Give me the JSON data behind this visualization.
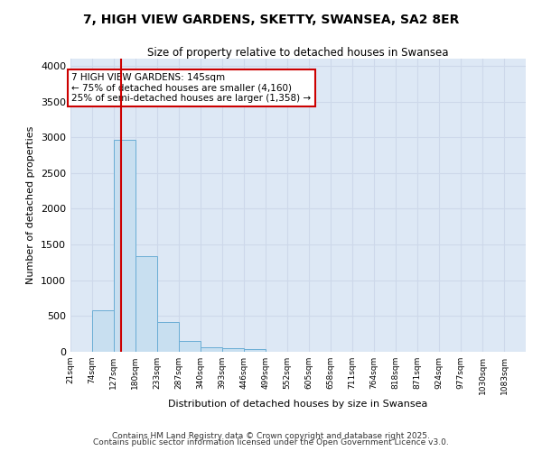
{
  "title_line1": "7, HIGH VIEW GARDENS, SKETTY, SWANSEA, SA2 8ER",
  "title_line2": "Size of property relative to detached houses in Swansea",
  "xlabel": "Distribution of detached houses by size in Swansea",
  "ylabel": "Number of detached properties",
  "bin_labels": [
    "21sqm",
    "74sqm",
    "127sqm",
    "180sqm",
    "233sqm",
    "287sqm",
    "340sqm",
    "393sqm",
    "446sqm",
    "499sqm",
    "552sqm",
    "605sqm",
    "658sqm",
    "711sqm",
    "764sqm",
    "818sqm",
    "871sqm",
    "924sqm",
    "977sqm",
    "1030sqm",
    "1083sqm"
  ],
  "bin_edges": [
    21,
    74,
    127,
    180,
    233,
    287,
    340,
    393,
    446,
    499,
    552,
    605,
    658,
    711,
    764,
    818,
    871,
    924,
    977,
    1030,
    1083,
    1136
  ],
  "bar_heights": [
    0,
    580,
    2970,
    1340,
    420,
    155,
    65,
    45,
    35,
    0,
    0,
    0,
    0,
    0,
    0,
    0,
    0,
    0,
    0,
    0,
    0
  ],
  "bar_color": "#c8dff0",
  "bar_edge_color": "#6aadd5",
  "grid_color": "#cdd8ea",
  "bg_color": "#dde8f5",
  "fig_bg_color": "#ffffff",
  "vline_x": 145,
  "vline_color": "#cc0000",
  "annotation_text": "7 HIGH VIEW GARDENS: 145sqm\n← 75% of detached houses are smaller (4,160)\n25% of semi-detached houses are larger (1,358) →",
  "annotation_box_color": "#cc0000",
  "annotation_text_color": "#000000",
  "ylim": [
    0,
    4100
  ],
  "yticks": [
    0,
    500,
    1000,
    1500,
    2000,
    2500,
    3000,
    3500,
    4000
  ],
  "footer_line1": "Contains HM Land Registry data © Crown copyright and database right 2025.",
  "footer_line2": "Contains public sector information licensed under the Open Government Licence v3.0."
}
